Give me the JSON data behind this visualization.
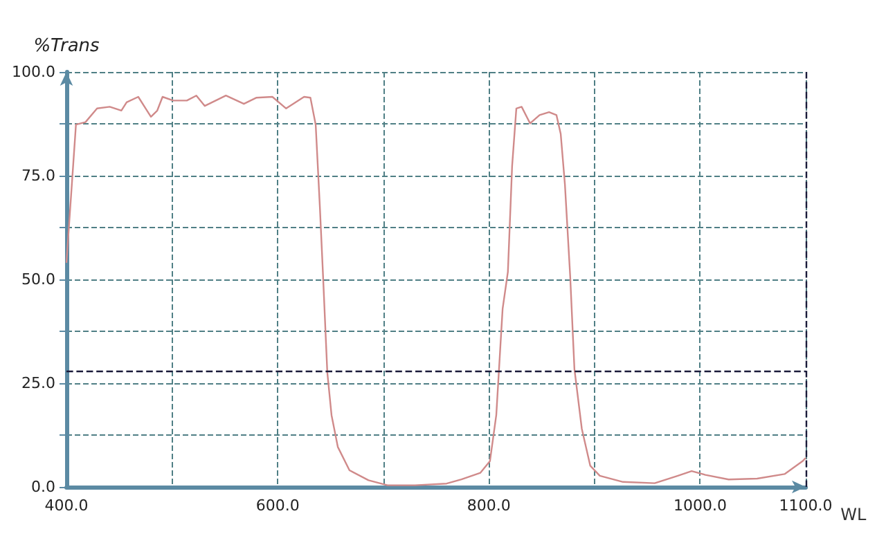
{
  "chart_data": {
    "type": "line",
    "ylabel": "%Trans",
    "xlabel": "WL",
    "xlim": [
      400,
      1100
    ],
    "xticks": [
      {
        "value": 400,
        "label": "400.0"
      },
      {
        "value": 500,
        "label": null
      },
      {
        "value": 600,
        "label": "600.0"
      },
      {
        "value": 700,
        "label": null
      },
      {
        "value": 800,
        "label": "800.0"
      },
      {
        "value": 900,
        "label": null
      },
      {
        "value": 1000,
        "label": "1000.0"
      },
      {
        "value": 1100,
        "label": "1100.0"
      }
    ],
    "ylim": [
      0,
      100
    ],
    "yticks": [
      {
        "value": 0,
        "label": "0.0"
      },
      {
        "value": 12.5,
        "label": null
      },
      {
        "value": 25,
        "label": "25.0"
      },
      {
        "value": 37.5,
        "label": null
      },
      {
        "value": 50,
        "label": "50.0"
      },
      {
        "value": 62.5,
        "label": null
      },
      {
        "value": 75,
        "label": "75.0"
      },
      {
        "value": 87.5,
        "label": null
      },
      {
        "value": 100,
        "label": "100.0"
      }
    ],
    "grid": true,
    "ref_lines": [
      {
        "axis": "y",
        "value": 28,
        "color": "#1a1a3a",
        "line_style": "dashed"
      },
      {
        "axis": "x",
        "value": 1100,
        "color": "#1a1a3a",
        "line_style": "dashed"
      }
    ],
    "series": [
      {
        "color": "#d08a8a",
        "x": [
          400,
          409,
          418,
          429,
          441,
          452,
          457,
          468,
          475,
          480,
          486,
          491,
          501,
          514,
          523,
          531,
          551,
          568,
          580,
          595,
          608,
          625,
          631,
          636,
          640,
          643,
          647,
          651,
          657,
          668,
          686,
          704,
          730,
          760,
          774,
          792,
          801,
          807,
          813,
          818,
          822,
          826,
          831,
          839,
          848,
          857,
          864,
          868,
          872,
          877,
          881,
          888,
          896,
          905,
          927,
          957,
          979,
          992,
          1005,
          1027,
          1054,
          1080,
          1097,
          1100
        ],
        "values": [
          54,
          87.3,
          87.9,
          91.2,
          91.6,
          90.7,
          92.7,
          94,
          91.2,
          89.2,
          90.7,
          94,
          93.1,
          93.1,
          94.3,
          91.8,
          94.3,
          92.3,
          93.8,
          94,
          91.2,
          94,
          93.8,
          87.3,
          67.3,
          50.7,
          27.6,
          17.3,
          9.6,
          4,
          1.6,
          0.4,
          0.4,
          0.8,
          1.8,
          3.4,
          6.2,
          17.3,
          42.9,
          51.8,
          77.3,
          91.2,
          91.6,
          87.6,
          89.6,
          90.3,
          89.6,
          85.1,
          72.9,
          50.7,
          28.4,
          14,
          5.1,
          2.7,
          1.2,
          0.9,
          2.7,
          3.8,
          2.9,
          1.8,
          2,
          3.1,
          6.2,
          7
        ]
      }
    ]
  }
}
